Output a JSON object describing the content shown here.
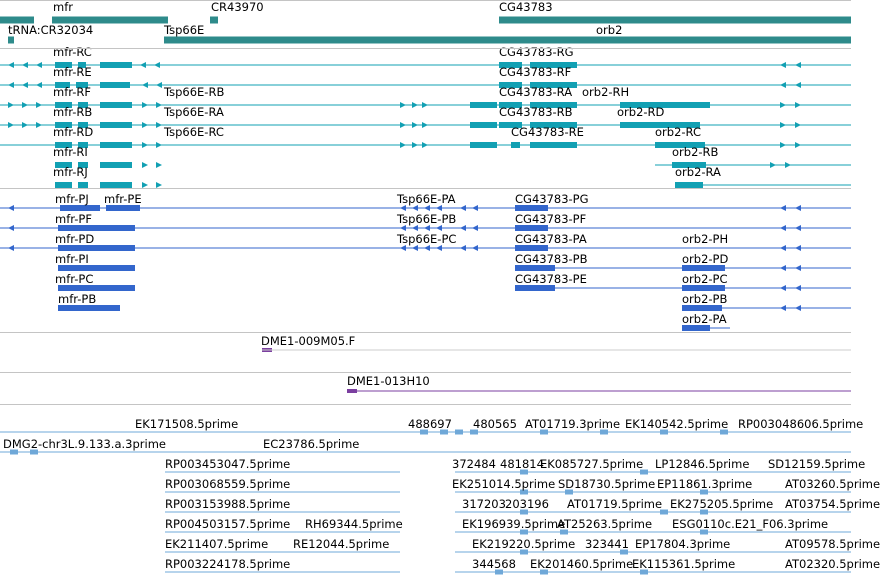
{
  "colors": {
    "gene": "#2e8b8b",
    "transcript": "#12a0b3",
    "protein": "#3366cc",
    "clone": "#7b3fa0",
    "est": "#6fa8d8",
    "separator": "#c4c4c4"
  },
  "genes": [
    {
      "label": "mfr"
    },
    {
      "label": "tRNA:CR32034"
    },
    {
      "label": "CR43970"
    },
    {
      "label": "Tsp66E"
    },
    {
      "label": "CG43783"
    },
    {
      "label": "orb2"
    }
  ],
  "transcripts": [
    {
      "label": "mfr-RC"
    },
    {
      "label": "mfr-RE"
    },
    {
      "label": "mfr-RF"
    },
    {
      "label": "mfr-RB"
    },
    {
      "label": "mfr-RD"
    },
    {
      "label": "mfr-RI"
    },
    {
      "label": "mfr-RJ"
    },
    {
      "label": "Tsp66E-RB"
    },
    {
      "label": "Tsp66E-RA"
    },
    {
      "label": "Tsp66E-RC"
    },
    {
      "label": "CG43783-RG"
    },
    {
      "label": "CG43783-RF"
    },
    {
      "label": "CG43783-RA"
    },
    {
      "label": "CG43783-RB"
    },
    {
      "label": "CG43783-RE"
    },
    {
      "label": "orb2-RH"
    },
    {
      "label": "orb2-RD"
    },
    {
      "label": "orb2-RC"
    },
    {
      "label": "orb2-RB"
    },
    {
      "label": "orb2-RA"
    }
  ],
  "proteins": [
    {
      "label": "mfr-PJ"
    },
    {
      "label": "mfr-PE"
    },
    {
      "label": "mfr-PF"
    },
    {
      "label": "mfr-PD"
    },
    {
      "label": "mfr-PI"
    },
    {
      "label": "mfr-PC"
    },
    {
      "label": "mfr-PB"
    },
    {
      "label": "Tsp66E-PA"
    },
    {
      "label": "Tsp66E-PB"
    },
    {
      "label": "Tsp66E-PC"
    },
    {
      "label": "CG43783-PG"
    },
    {
      "label": "CG43783-PF"
    },
    {
      "label": "CG43783-PA"
    },
    {
      "label": "CG43783-PB"
    },
    {
      "label": "CG43783-PE"
    },
    {
      "label": "orb2-PH"
    },
    {
      "label": "orb2-PD"
    },
    {
      "label": "orb2-PC"
    },
    {
      "label": "orb2-PB"
    },
    {
      "label": "orb2-PA"
    }
  ],
  "clones": [
    {
      "label": "DME1-009M05.F"
    },
    {
      "label": "DME1-013H10"
    }
  ],
  "ests": [
    {
      "label": "EK171508.5prime"
    },
    {
      "label": "488697"
    },
    {
      "label": "480565"
    },
    {
      "label": "AT01719.3prime"
    },
    {
      "label": "EK140542.5prime"
    },
    {
      "label": "RP003048606.5prime"
    },
    {
      "label": "DMG2-chr3L.9.133.a.3prime"
    },
    {
      "label": "EC23786.5prime"
    },
    {
      "label": "RP003453047.5prime"
    },
    {
      "label": "372484"
    },
    {
      "label": "481814"
    },
    {
      "label": "EK085727.5prime"
    },
    {
      "label": "LP12846.5prime"
    },
    {
      "label": "SD12159.5prime"
    },
    {
      "label": "RP003068559.5prime"
    },
    {
      "label": "EK251014.5prime"
    },
    {
      "label": "SD18730.5prime"
    },
    {
      "label": "EP11861.3prime"
    },
    {
      "label": "AT03260.5prime"
    },
    {
      "label": "RP003153988.5prime"
    },
    {
      "label": "317203"
    },
    {
      "label": "203196"
    },
    {
      "label": "AT01719.5prime"
    },
    {
      "label": "EK275205.5prime"
    },
    {
      "label": "AT03754.5prime"
    },
    {
      "label": "RP004503157.5prime"
    },
    {
      "label": "RH69344.5prime"
    },
    {
      "label": "EK196939.5prime"
    },
    {
      "label": "AT25263.5prime"
    },
    {
      "label": "ESG0110c.E21_F06.3prime"
    },
    {
      "label": "EK211407.5prime"
    },
    {
      "label": "RE12044.5prime"
    },
    {
      "label": "EK219220.5prime"
    },
    {
      "label": "323441"
    },
    {
      "label": "EP17804.3prime"
    },
    {
      "label": "AT09578.5prime"
    },
    {
      "label": "RP003224178.5prime"
    },
    {
      "label": "344568"
    },
    {
      "label": "EK201460.5prime"
    },
    {
      "label": "EK115361.5prime"
    },
    {
      "label": "AT02320.5prime"
    }
  ]
}
